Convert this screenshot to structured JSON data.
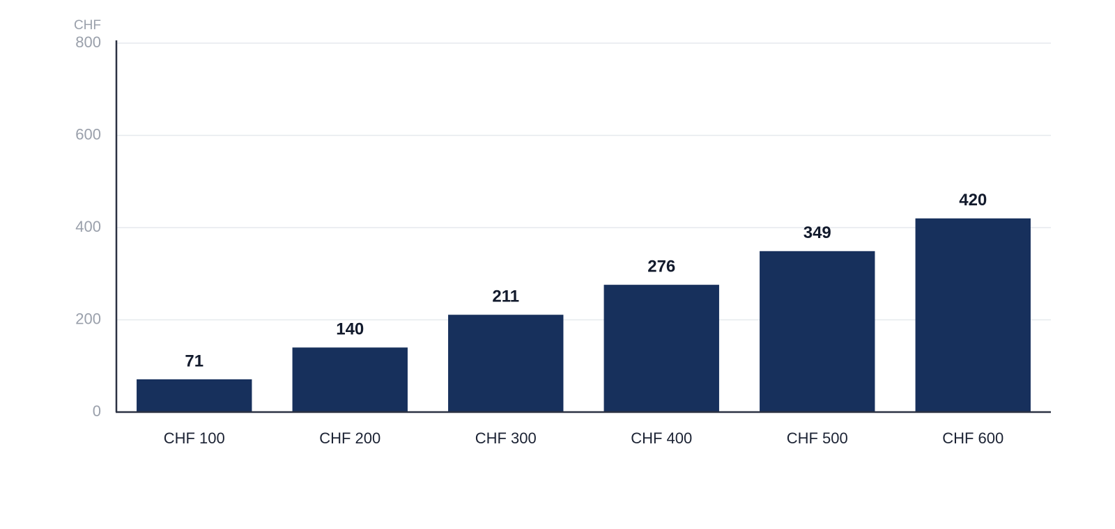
{
  "chart_data": {
    "type": "bar",
    "y_label": "CHF",
    "categories": [
      "CHF 100",
      "CHF 200",
      "CHF 300",
      "CHF 400",
      "CHF 500",
      "CHF 600"
    ],
    "values": [
      71,
      140,
      211,
      276,
      349,
      420
    ],
    "color": "#17305c",
    "ylim": [
      0,
      800
    ],
    "yticks": [
      0,
      200,
      400,
      600,
      800
    ],
    "grid": true
  }
}
